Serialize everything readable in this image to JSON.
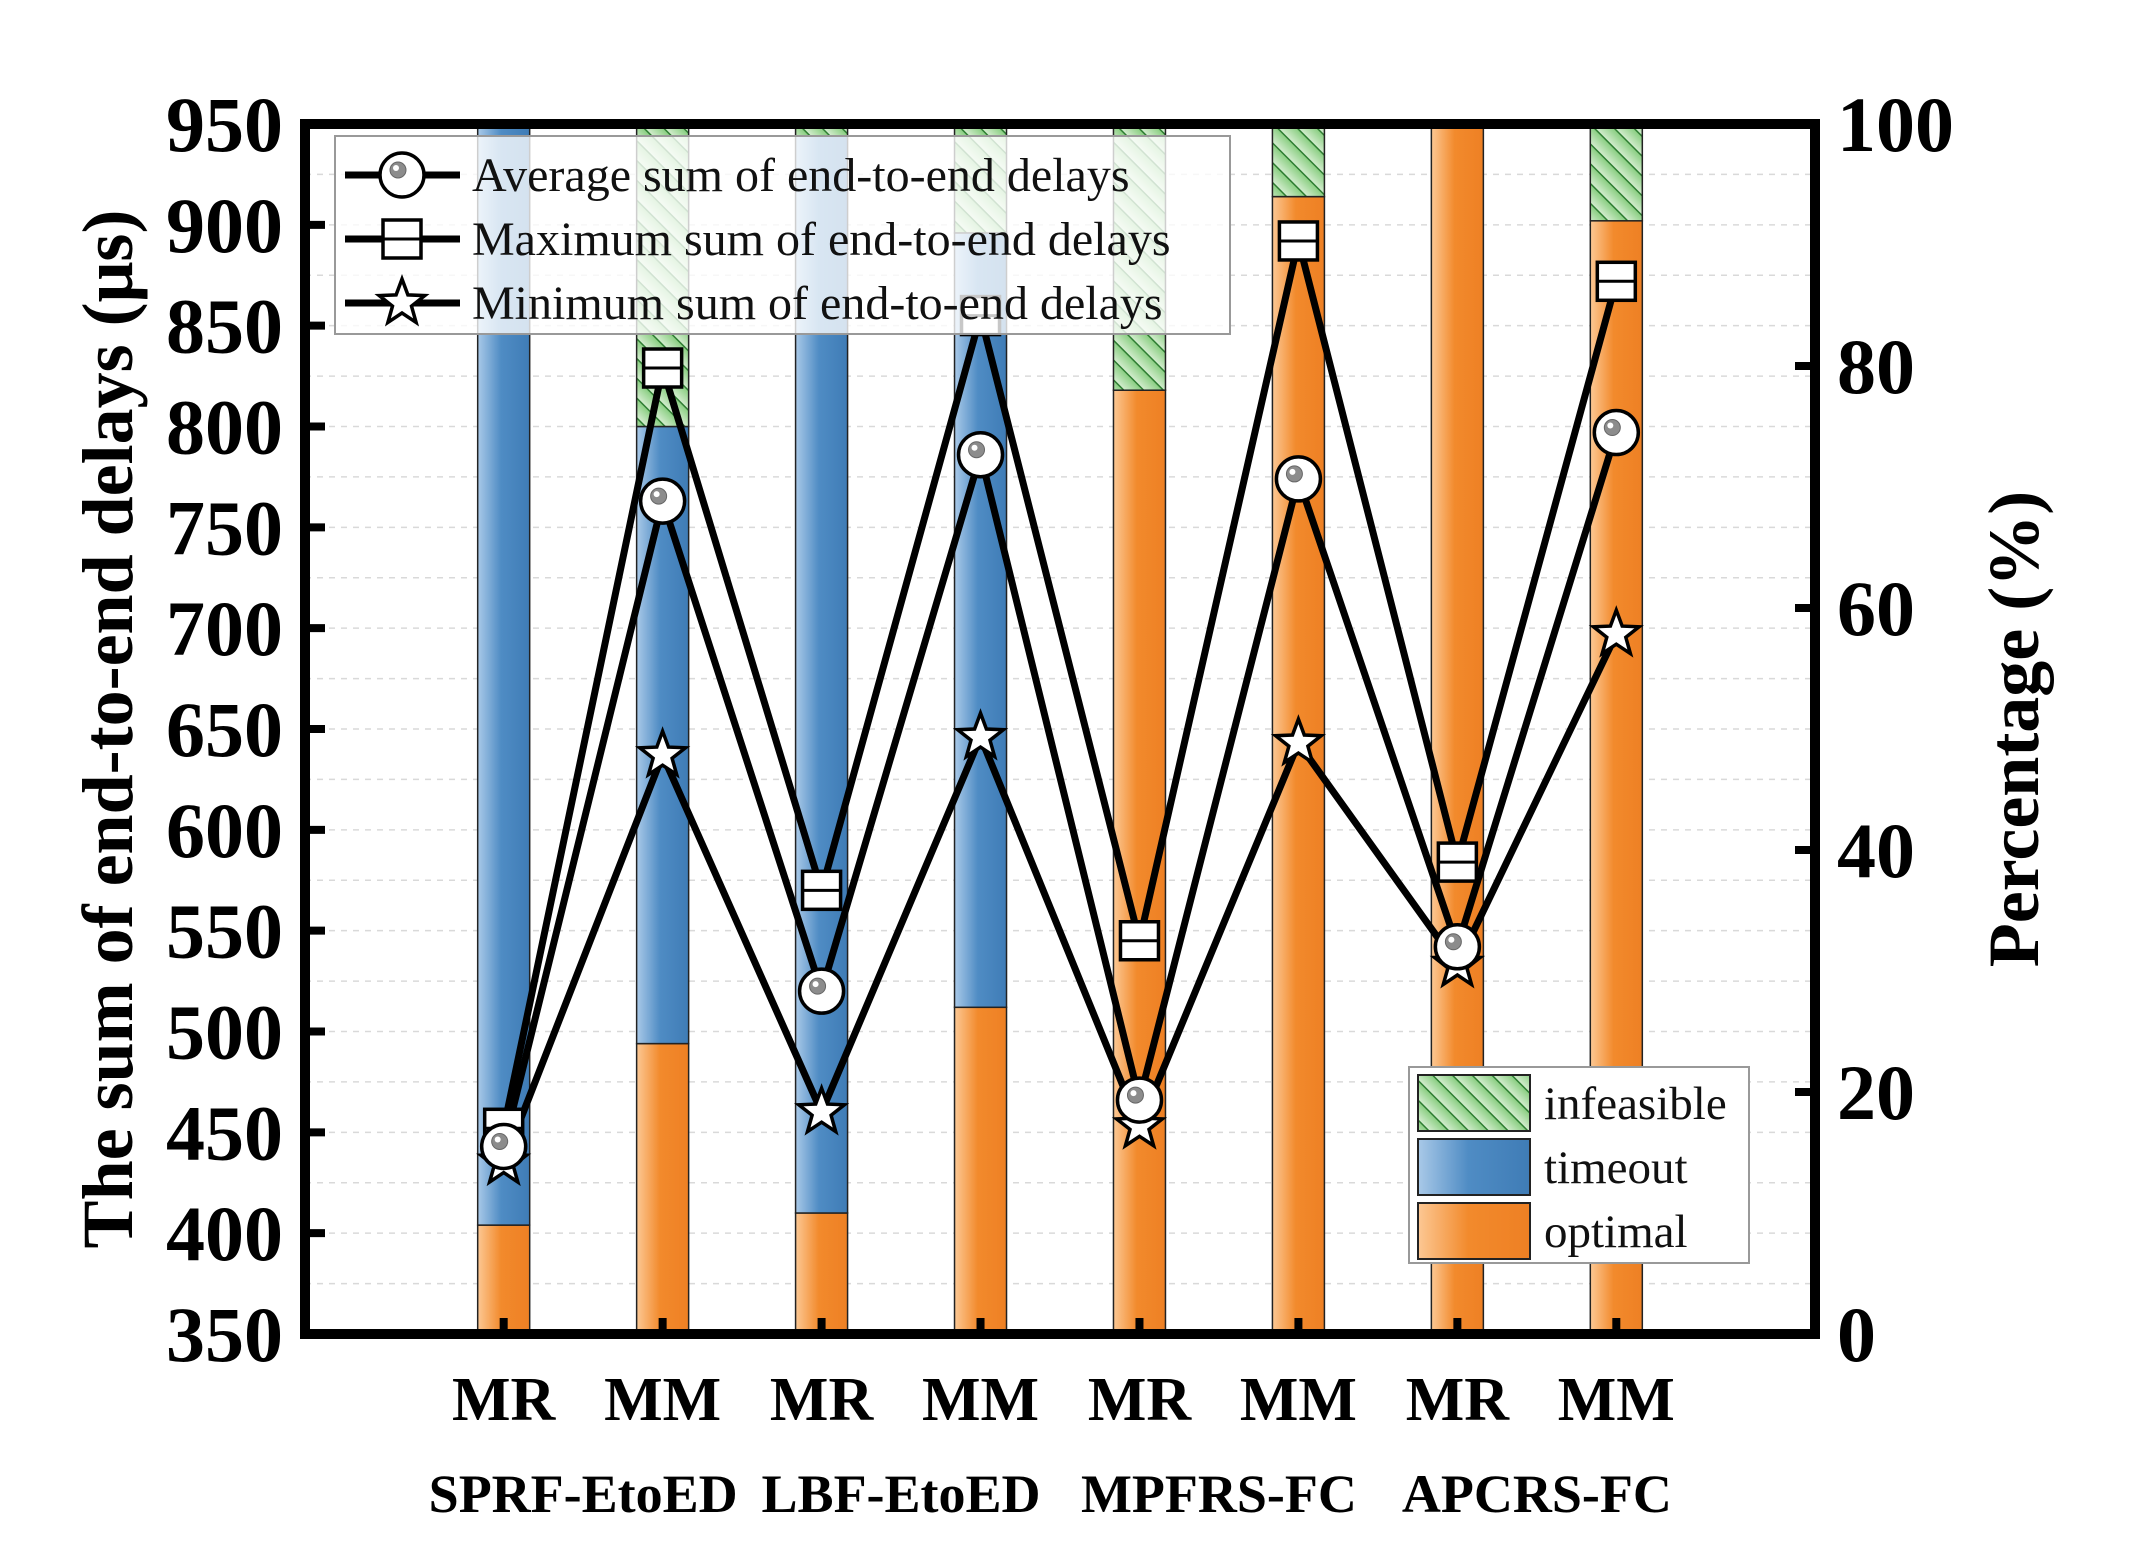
{
  "chart_data": {
    "type": "bar",
    "categories": [
      "MR",
      "MM",
      "MR",
      "MM",
      "MR",
      "MM",
      "MR",
      "MM"
    ],
    "groups": [
      "SPRF-EtoED",
      "LBF-EtoED",
      "MPFRS-FC",
      "APCRS-FC"
    ],
    "ylabel_left": "The sum of end-to-end delays (μs)",
    "ylabel_right": "Percentage (%)",
    "ylim_left": [
      350,
      950
    ],
    "yticks_left": [
      "350",
      "400",
      "450",
      "500",
      "550",
      "600",
      "650",
      "700",
      "750",
      "800",
      "850",
      "900",
      "950"
    ],
    "ylim_right": [
      0,
      100
    ],
    "yticks_right": [
      "0",
      "20",
      "40",
      "60",
      "80",
      "100"
    ],
    "stacked_percentage": {
      "series": [
        {
          "name": "optimal",
          "color": "#f28a2c",
          "values": [
            9,
            24,
            10,
            27,
            78,
            94,
            100,
            92
          ]
        },
        {
          "name": "timeout",
          "color": "#4f8cc4",
          "values": [
            91,
            51,
            89,
            64,
            0,
            0,
            0,
            0
          ]
        },
        {
          "name": "infeasible",
          "color": "#5cb85c",
          "values": [
            0,
            25,
            1,
            9,
            22,
            6,
            0,
            8
          ]
        }
      ]
    },
    "lines": [
      {
        "name": "Average sum of end-to-end delays",
        "marker": "circle",
        "values": [
          443,
          763,
          520,
          786,
          466,
          774,
          542,
          797
        ]
      },
      {
        "name": "Maximum sum of end-to-end delays",
        "marker": "square",
        "values": [
          452,
          829,
          570,
          855,
          545,
          892,
          584,
          872
        ]
      },
      {
        "name": "Minimum  sum of end-to-end delays",
        "marker": "star",
        "values": [
          435,
          637,
          460,
          646,
          453,
          643,
          533,
          697
        ]
      }
    ],
    "legend_lines_position": "top-left",
    "legend_bars_position": "bottom-right",
    "grid": true
  }
}
